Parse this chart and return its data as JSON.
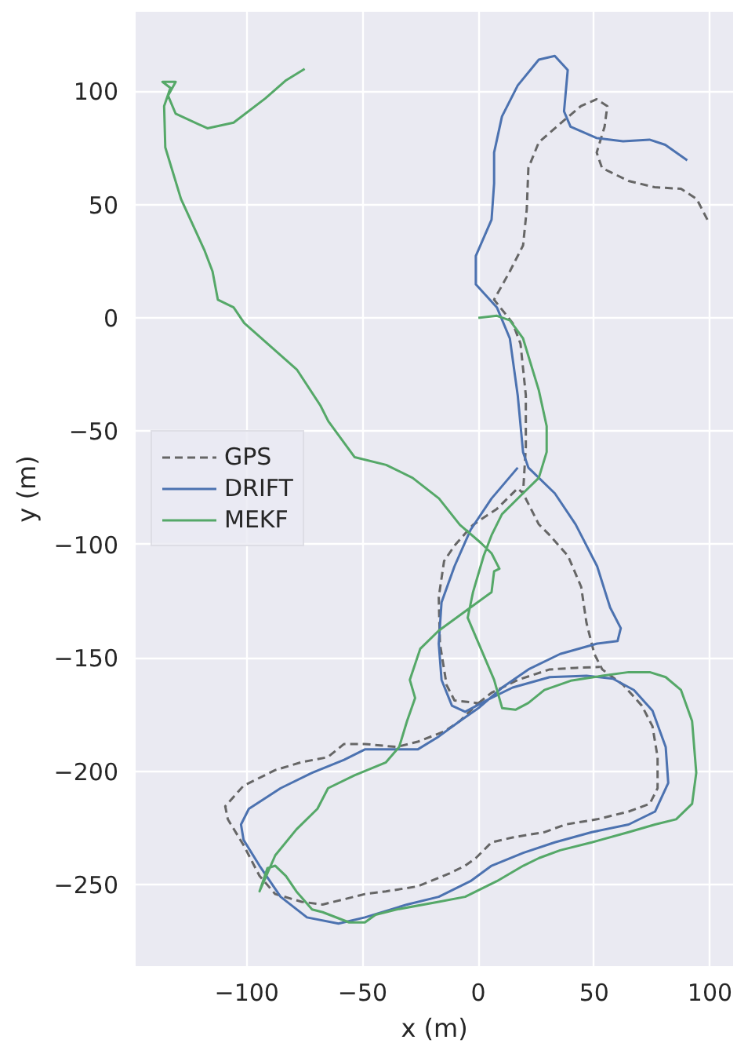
{
  "chart_data": {
    "type": "line",
    "xlabel": "x (m)",
    "ylabel": "y (m)",
    "xlim": [
      -148,
      110
    ],
    "ylim": [
      -286,
      135
    ],
    "xticks": [
      -100,
      -50,
      0,
      50,
      100
    ],
    "yticks": [
      -250,
      -200,
      -150,
      -100,
      -50,
      0,
      50,
      100
    ],
    "grid": true,
    "legend": "left",
    "series": [
      {
        "name": "GPS",
        "color": "#666666",
        "line_style": "dashed",
        "x": [
          98.9,
          94.3,
          87.5,
          76.1,
          64.8,
          53.4,
          51.1,
          54.5,
          55.7,
          51.1,
          44.3,
          36.4,
          26.1,
          21.6,
          20.9,
          19.3,
          13.6,
          6.8,
          14.8,
          18.2,
          20.5,
          20.5,
          19.3,
          17,
          8,
          -2.3,
          -10.3,
          -14.8,
          -17.1,
          -16.6,
          -13.7,
          -10.3,
          0,
          -8,
          -14.8,
          -26.2,
          -35.3,
          -49,
          -58,
          -65,
          -76.3,
          -87.7,
          -101.4,
          -109.3,
          -108.2,
          -101.4,
          -94.5,
          -87.7,
          -76.3,
          -67.2,
          -58,
          -49,
          -39.9,
          -26.2,
          -12.5,
          -5.7,
          -1.1,
          5.7,
          14.8,
          28.5,
          37.6,
          51.3,
          64.9,
          74,
          77.4,
          77.4,
          75.2,
          70.6,
          62.6,
          53.5,
          50.1,
          46.7,
          44.4,
          38.7,
          30.8,
          26.1,
          19.3,
          null,
          0,
          5.7,
          17.1,
          30.8,
          42.1,
          52.4
        ],
        "values": [
          43.3,
          52.4,
          56.9,
          57.6,
          60.4,
          66.1,
          72.9,
          84.3,
          93.4,
          96.4,
          93.4,
          86.6,
          77.4,
          66.1,
          47.8,
          31.9,
          20.5,
          8,
          -2.3,
          -11.4,
          -34.2,
          -56.9,
          -77.4,
          -75.2,
          -84.3,
          -91.3,
          -100.5,
          -107.3,
          -123.2,
          -143.7,
          -162,
          -168.8,
          -170,
          -177.9,
          -182.5,
          -187,
          -189.3,
          -188,
          -188,
          -193.8,
          -196,
          -199.5,
          -206.4,
          -215.5,
          -221.2,
          -232.6,
          -246.2,
          -254.2,
          -257.6,
          -258.8,
          -256.5,
          -254.2,
          -253,
          -250.8,
          -245.1,
          -241.7,
          -238.3,
          -231.4,
          -229.2,
          -226.9,
          -223.5,
          -221.2,
          -217.8,
          -214.4,
          -207.5,
          -193.8,
          -180.2,
          -171.1,
          -162,
          -155.1,
          -148.3,
          -134.6,
          -118.7,
          -105,
          -95.9,
          -91.1,
          -77.4,
          null,
          -170,
          -165.4,
          -159.7,
          -155.1,
          -154.4,
          -154
        ]
      },
      {
        "name": "DRIFT",
        "color": "#4c72b0",
        "x": [
          90.2,
          80.7,
          73.9,
          62.5,
          51.1,
          39.8,
          37,
          38.6,
          33,
          26.1,
          17,
          10.2,
          6.8,
          6.8,
          5.7,
          -1.1,
          -1.1,
          8,
          13.6,
          17,
          19.3,
          21.6,
          33,
          42,
          44.4,
          51.3,
          56.9,
          61.5,
          60.1,
          51.3,
          35.3,
          21.6,
          10.3,
          0,
          -8,
          -17.1,
          -26.2,
          -35.3,
          -49,
          -58,
          -71.8,
          -85.4,
          -99.1,
          -102.5,
          -101.4,
          -94.5,
          -85.4,
          -74,
          -60.4,
          -49,
          -30.8,
          -17.1,
          -3.4,
          5.7,
          19.4,
          33,
          49,
          64.9,
          76.3,
          82,
          80.9,
          75.2,
          67.2,
          58.1,
          46.7,
          30.8,
          14.8,
          5,
          -5.7,
          -11.4,
          -15.9,
          -17.1,
          -15.9,
          -10.3,
          -3.4,
          5.7,
          17
        ],
        "values": [
          69.5,
          76.3,
          78.6,
          77.9,
          79.3,
          84.3,
          91.1,
          109.3,
          115.5,
          113.9,
          102.5,
          88.8,
          72.9,
          59.2,
          43.3,
          27.3,
          14.8,
          4.6,
          -9.1,
          -34.2,
          -59.2,
          -66.1,
          -77.4,
          -91.1,
          -95.9,
          -109.6,
          -127.8,
          -136.9,
          -142.6,
          -143.7,
          -148.3,
          -155.1,
          -163.1,
          -172.2,
          -177.9,
          -184.7,
          -190.4,
          -190.4,
          -190.4,
          -195,
          -200.7,
          -207.5,
          -216.6,
          -223.5,
          -230.3,
          -241.7,
          -255.4,
          -264.5,
          -267.2,
          -264.5,
          -258.8,
          -255.4,
          -248.5,
          -241.7,
          -236,
          -231.4,
          -226.9,
          -223.5,
          -217.8,
          -205.2,
          -189.3,
          -173.3,
          -164.2,
          -159.2,
          -157.9,
          -158.5,
          -163.1,
          -168,
          -173.8,
          -171.1,
          -159.7,
          -143.7,
          -125.5,
          -109.6,
          -93.6,
          -79.7,
          -66.1
        ]
      },
      {
        "name": "MEKF",
        "color": "#55a868",
        "x": [
          0,
          8,
          13.6,
          19.3,
          26.1,
          29.5,
          29.5,
          26.1,
          19.3,
          10.2,
          5.7,
          2.3,
          -2.3,
          -4.6,
          1.1,
          6.8,
          10.3,
          16,
          21.6,
          28.5,
          39.9,
          53.5,
          64.9,
          74,
          80.9,
          87.5,
          92.3,
          94.1,
          92.3,
          85.4,
          76.3,
          64.9,
          49,
          35.3,
          26.2,
          19.4,
          8,
          -5.7,
          -17.1,
          -35.3,
          -44.4,
          -49,
          -55.8,
          -67.2,
          -71.8,
          -78.6,
          -83.1,
          -87.7,
          -91.1,
          -94.5,
          -87.7,
          -78.6,
          -69.5,
          -64.9,
          -53.5,
          -39.9,
          -34.2,
          -30.8,
          -27.3,
          -29.6,
          -25.1,
          -17.1,
          -3.4,
          5.7,
          6.8,
          9.1,
          5.7,
          1.1,
          -8,
          -17,
          -28.4,
          -39.8,
          -53.4,
          -64.8,
          -68.2,
          -78.4,
          -101.1,
          -105.7,
          -112.5,
          -114.8,
          -118.2,
          -128.4,
          -135.2,
          -135.7,
          -133,
          -136.4,
          -130.7,
          -134,
          -130.7,
          -117,
          -105.7,
          -92,
          -83,
          -75
        ],
        "values": [
          0,
          0.9,
          -1.1,
          -9.1,
          -31.9,
          -47.8,
          -59.2,
          -70.6,
          -77.4,
          -86.6,
          -95.9,
          -105,
          -121,
          -132.3,
          -146,
          -159.7,
          -172.2,
          -172.9,
          -169.9,
          -164.2,
          -160.1,
          -157.9,
          -156.3,
          -156.3,
          -158.5,
          -164.2,
          -177.9,
          -200.7,
          -214.4,
          -221.2,
          -223.5,
          -226.9,
          -231.4,
          -234.9,
          -238.3,
          -241.7,
          -248.5,
          -255.4,
          -257.6,
          -261,
          -263.3,
          -266.7,
          -266.7,
          -262.2,
          -261,
          -253,
          -246.2,
          -241.7,
          -242.8,
          -253,
          -237.1,
          -225.7,
          -216.6,
          -207.5,
          -201.8,
          -196.1,
          -189.3,
          -177.9,
          -167.7,
          -159.7,
          -146,
          -138,
          -127.8,
          -121,
          -111.8,
          -110.7,
          -103.9,
          -99.3,
          -91.3,
          -79.7,
          -70.6,
          -64.9,
          -61.5,
          -45.6,
          -38.7,
          -22.8,
          -2.3,
          4.6,
          8,
          20.5,
          29.6,
          52.4,
          75.2,
          93.4,
          101.4,
          104.1,
          104.1,
          98,
          90,
          83.6,
          86.1,
          96.8,
          104.8,
          109.8
        ]
      }
    ]
  }
}
